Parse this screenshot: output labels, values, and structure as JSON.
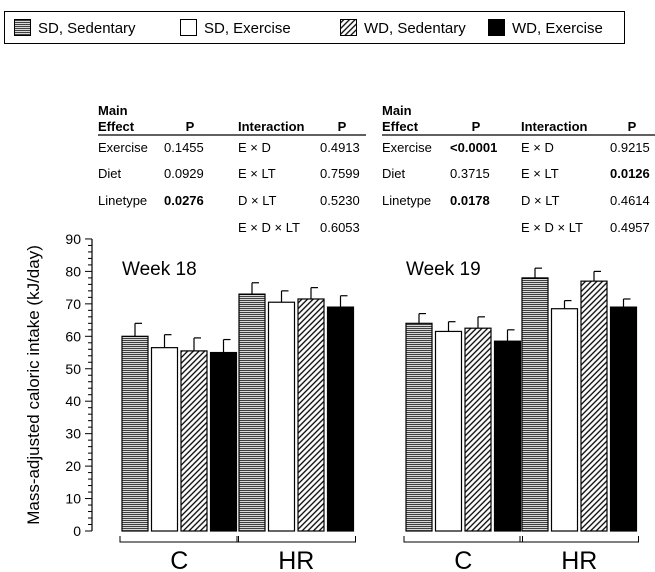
{
  "chart_data": {
    "type": "bar",
    "ylabel": "Mass-adjusted caloric intake (kJ/day)",
    "ylim": [
      0,
      90
    ],
    "yticks": [
      "0",
      "10",
      "20",
      "30",
      "40",
      "50",
      "60",
      "70",
      "80",
      "90"
    ],
    "legend": {
      "placement": "top",
      "entries": [
        {
          "name": "SD, Sedentary",
          "pattern": "horizontal-lines"
        },
        {
          "name": "SD, Exercise",
          "pattern": "white"
        },
        {
          "name": "WD, Sedentary",
          "pattern": "diagonal-lines"
        },
        {
          "name": "WD, Exercise",
          "pattern": "black"
        }
      ]
    },
    "panels": [
      {
        "week": "Week 18",
        "groups": [
          {
            "label": "C",
            "values": [
              60,
              56.5,
              55.5,
              55
            ],
            "errors": [
              4,
              4,
              4,
              4
            ]
          },
          {
            "label": "HR",
            "values": [
              73,
              70.5,
              71.5,
              69
            ],
            "errors": [
              3.5,
              3.5,
              3.5,
              3.5
            ]
          }
        ],
        "stats": {
          "main_header": [
            "Main",
            "Effect",
            "P"
          ],
          "int_header": [
            "Interaction",
            "P"
          ],
          "main": [
            {
              "name": "Exercise",
              "p": "0.1455",
              "bold": false
            },
            {
              "name": "Diet",
              "p": "0.0929",
              "bold": false
            },
            {
              "name": "Linetype",
              "p": "0.0276",
              "bold": true
            }
          ],
          "interaction": [
            {
              "name": "E × D",
              "p": "0.4913",
              "bold": false
            },
            {
              "name": "E × LT",
              "p": "0.7599",
              "bold": false
            },
            {
              "name": "D × LT",
              "p": "0.5230",
              "bold": false
            },
            {
              "name": "E × D × LT",
              "p": "0.6053",
              "bold": false
            }
          ]
        }
      },
      {
        "week": "Week 19",
        "groups": [
          {
            "label": "C",
            "values": [
              64,
              61.5,
              62.5,
              58.5
            ],
            "errors": [
              3,
              3,
              3.5,
              3.5
            ]
          },
          {
            "label": "HR",
            "values": [
              78,
              68.5,
              77,
              69
            ],
            "errors": [
              3,
              2.5,
              3,
              2.5
            ]
          }
        ],
        "stats": {
          "main_header": [
            "Main",
            "Effect",
            "P"
          ],
          "int_header": [
            "Interaction",
            "P"
          ],
          "main": [
            {
              "name": "Exercise",
              "p": "<0.0001",
              "bold": true
            },
            {
              "name": "Diet",
              "p": "0.3715",
              "bold": false
            },
            {
              "name": "Linetype",
              "p": "0.0178",
              "bold": true
            }
          ],
          "interaction": [
            {
              "name": "E × D",
              "p": "0.9215",
              "bold": false
            },
            {
              "name": "E × LT",
              "p": "0.0126",
              "bold": true
            },
            {
              "name": "D × LT",
              "p": "0.4614",
              "bold": false
            },
            {
              "name": "E × D × LT",
              "p": "0.4957",
              "bold": false
            }
          ]
        }
      }
    ]
  }
}
